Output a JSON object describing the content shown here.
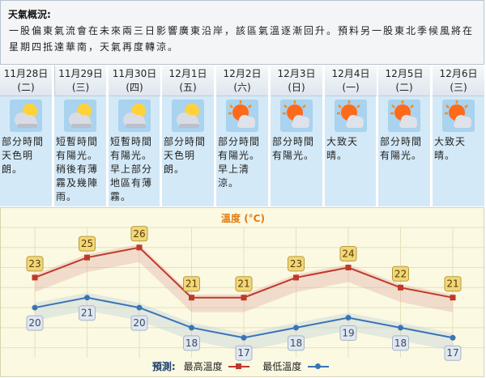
{
  "summary": {
    "title": "天氣概況:",
    "text": "一股偏東氣流會在未來兩三日影響廣東沿岸，該區氣溫逐漸回升。預料另一股東北季候風將在星期四抵達華南，天氣再度轉涼。"
  },
  "days": [
    {
      "date": "11月28日",
      "weekday": "(二)",
      "icon": "sun-cloud-icon",
      "desc": "部分時間天色明朗。"
    },
    {
      "date": "11月29日",
      "weekday": "(三)",
      "icon": "sun-cloud-icon",
      "desc": "短暫時間有陽光。稍後有薄霧及幾陣雨。"
    },
    {
      "date": "11月30日",
      "weekday": "(四)",
      "icon": "sun-cloud-icon",
      "desc": "短暫時間有陽光。早上部分地區有薄霧。"
    },
    {
      "date": "12月1日",
      "weekday": "(五)",
      "icon": "sun-cloud-icon",
      "desc": "部分時間天色明朗。"
    },
    {
      "date": "12月2日",
      "weekday": "(六)",
      "icon": "sunny-periods-icon",
      "desc": "部分時間有陽光。早上清涼。"
    },
    {
      "date": "12月3日",
      "weekday": "(日)",
      "icon": "sunny-periods-icon",
      "desc": "部分時間有陽光。"
    },
    {
      "date": "12月4日",
      "weekday": "(一)",
      "icon": "sunny-periods-icon",
      "desc": "大致天晴。"
    },
    {
      "date": "12月5日",
      "weekday": "(二)",
      "icon": "sunny-periods-icon",
      "desc": "部分時間有陽光。"
    },
    {
      "date": "12月6日",
      "weekday": "(三)",
      "icon": "sunny-periods-icon",
      "desc": "大致天晴。"
    }
  ],
  "chart_title": "溫度 (°C)",
  "legend": {
    "prefix": "預測:",
    "max_label": "最高溫度",
    "min_label": "最低溫度"
  },
  "colors": {
    "max_line": "#c0392b",
    "min_line": "#3a74b5",
    "max_label_bg": "#f0d77a",
    "min_label_bg": "#dfe7f0"
  },
  "chart_data": {
    "type": "line",
    "categories": [
      "11月28日",
      "11月29日",
      "11月30日",
      "12月1日",
      "12月2日",
      "12月3日",
      "12月4日",
      "12月5日",
      "12月6日"
    ],
    "series": [
      {
        "name": "最高溫度",
        "values": [
          23,
          25,
          26,
          21,
          21,
          23,
          24,
          22,
          21
        ]
      },
      {
        "name": "最低溫度",
        "values": [
          20,
          21,
          20,
          18,
          17,
          18,
          19,
          18,
          17
        ]
      }
    ],
    "ylim": [
      15,
      28
    ],
    "grid": true,
    "legend_position": "bottom"
  }
}
